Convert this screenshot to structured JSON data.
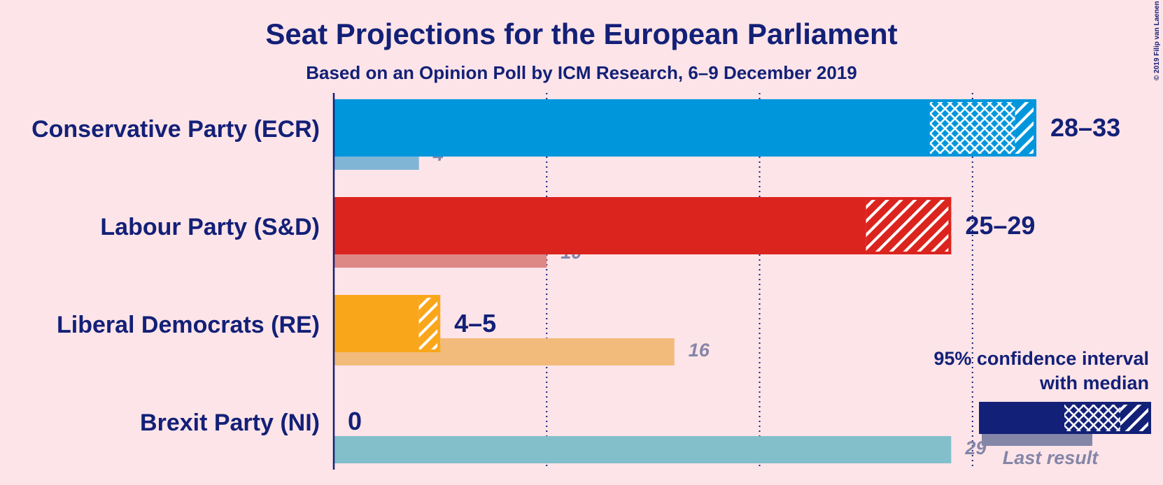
{
  "chart_data": {
    "type": "range_bar",
    "title": "Seat Projections for the European Parliament",
    "subtitle": "Based on an Opinion Poll by ICM Research, 6–9 December 2019",
    "categories": [
      "Conservative Party (ECR)",
      "Labour Party (S&D)",
      "Liberal Democrats (RE)",
      "Brexit Party (NI)"
    ],
    "low": [
      28,
      25,
      4,
      0
    ],
    "median": [
      32,
      25,
      4,
      0
    ],
    "high": [
      33,
      29,
      5,
      0
    ],
    "value_labels": [
      "28–33",
      "25–29",
      "4–5",
      "0"
    ],
    "last_result": [
      4,
      10,
      16,
      29
    ],
    "colors": [
      "#0096dc",
      "#dc241f",
      "#faa61a",
      "#12b6cf"
    ],
    "last_colors": [
      "#80b5d6",
      "#de8886",
      "#f2bb7c",
      "#83bfca"
    ],
    "xlim": [
      0,
      40
    ],
    "xticks": [
      10,
      20,
      30
    ],
    "grid": true,
    "legend": {
      "ci": "95% confidence interval",
      "median": "with median",
      "last": "Last result"
    },
    "copyright": "© 2019 Filip van Laenen"
  }
}
